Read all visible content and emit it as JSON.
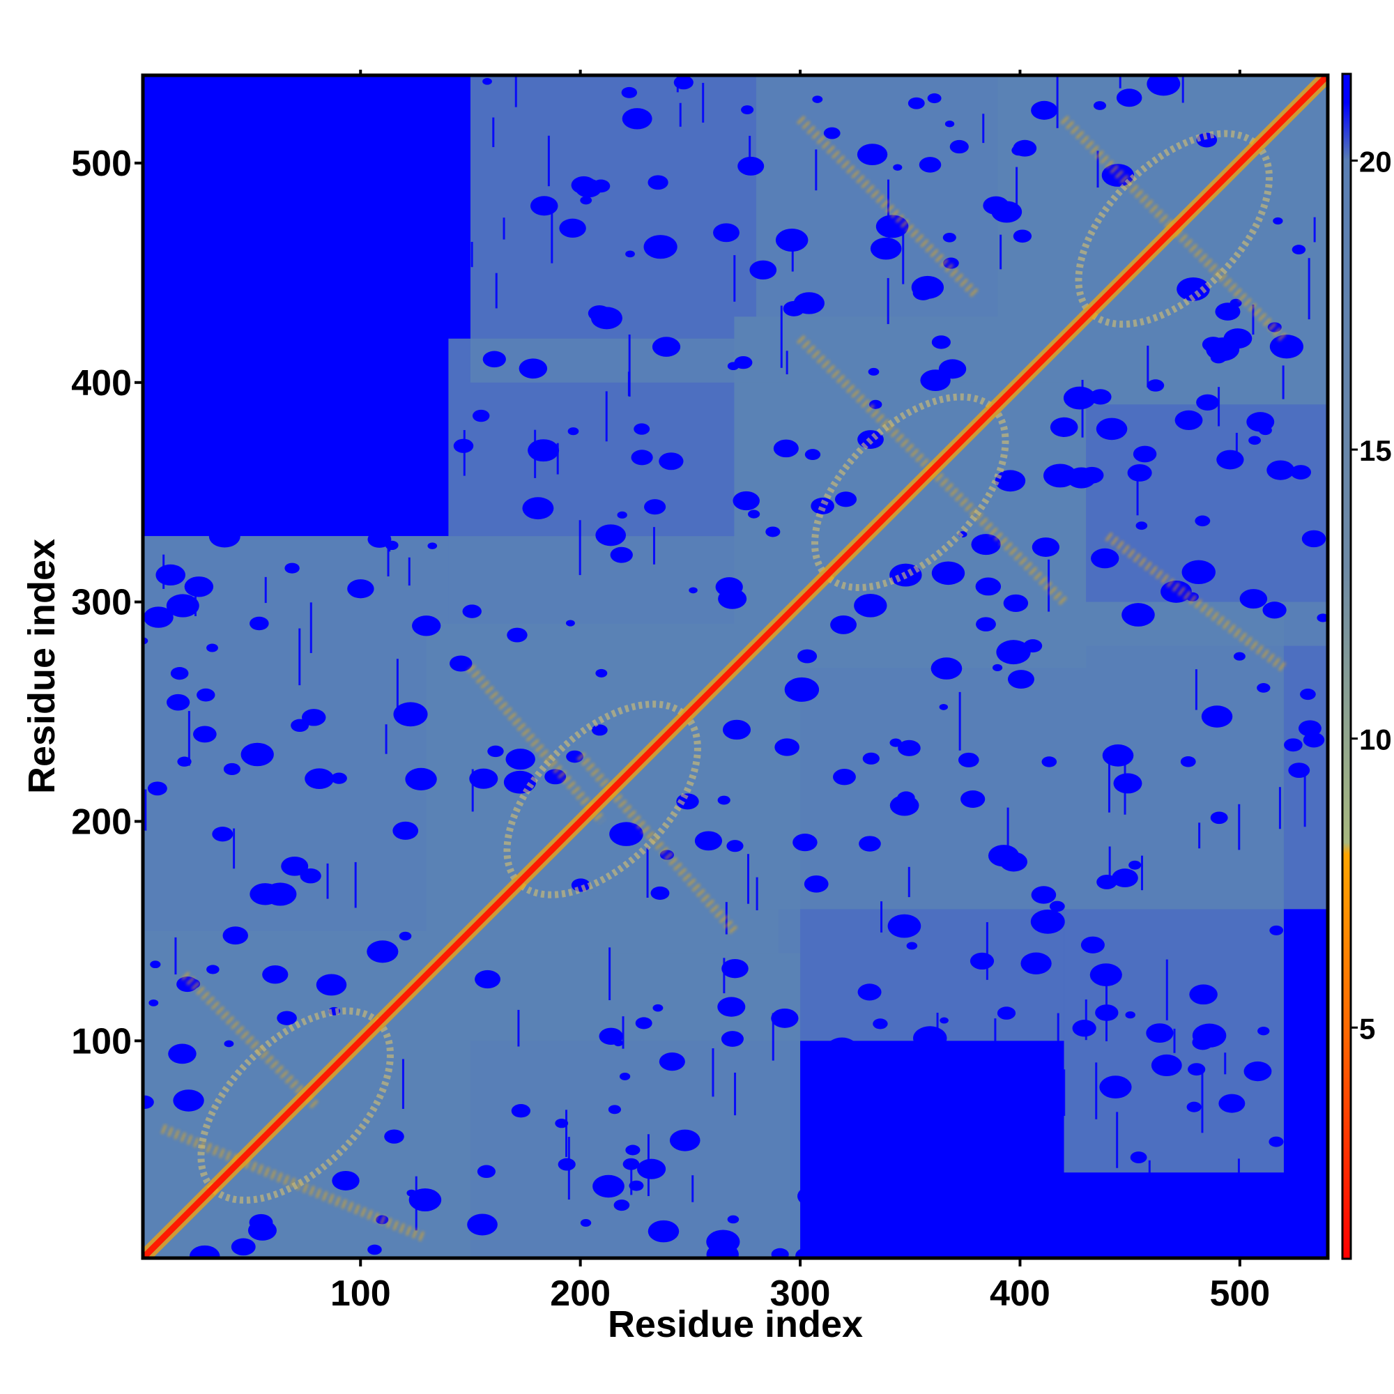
{
  "chart_data": {
    "type": "heatmap",
    "title": "",
    "xlabel": "Residue index",
    "ylabel": "Residue index",
    "xlim": [
      1,
      540
    ],
    "ylim": [
      1,
      540
    ],
    "x_ticks": [
      100,
      200,
      300,
      400,
      500
    ],
    "y_ticks": [
      100,
      200,
      300,
      400,
      500
    ],
    "x_tick_labels": [
      "100",
      "200",
      "300",
      "400",
      "500"
    ],
    "y_tick_labels": [
      "100",
      "200",
      "300",
      "400",
      "500"
    ],
    "colorbar": {
      "range": [
        1,
        21.5
      ],
      "ticks": [
        5,
        10,
        15,
        20
      ],
      "tick_labels": [
        "5",
        "10",
        "15",
        "20"
      ],
      "colors": [
        {
          "value": 1,
          "color": "#ff0000"
        },
        {
          "value": 5,
          "color": "#ff6a00"
        },
        {
          "value": 8,
          "color": "#ffa500"
        },
        {
          "value": 8.2,
          "color": "#a8b880"
        },
        {
          "value": 13,
          "color": "#6e8aa6"
        },
        {
          "value": 20,
          "color": "#5a7fb4"
        },
        {
          "value": 21,
          "color": "#0000ff"
        }
      ]
    },
    "background_color": "#0000ff",
    "contact_color": "#5b82b5",
    "diagonal_color": "#ff1a00",
    "highlight_color": "#ffb000",
    "grid": false,
    "legend": "colorbar-right",
    "domains": [
      {
        "start": 1,
        "end": 140
      },
      {
        "start": 140,
        "end": 280
      },
      {
        "start": 280,
        "end": 420
      },
      {
        "start": 400,
        "end": 540
      }
    ],
    "off_diagonal_bands": [
      {
        "x": [
          10,
          130
        ],
        "y": [
          60,
          10
        ]
      },
      {
        "x": [
          20,
          80
        ],
        "y": [
          130,
          70
        ]
      },
      {
        "x": [
          150,
          210
        ],
        "y": [
          270,
          200
        ]
      },
      {
        "x": [
          200,
          270
        ],
        "y": [
          230,
          150
        ]
      },
      {
        "x": [
          300,
          420
        ],
        "y": [
          420,
          300
        ]
      },
      {
        "x": [
          420,
          520
        ],
        "y": [
          520,
          420
        ]
      },
      {
        "x": [
          300,
          380
        ],
        "y": [
          520,
          440
        ]
      },
      {
        "x": [
          440,
          520
        ],
        "y": [
          330,
          270
        ]
      }
    ]
  }
}
